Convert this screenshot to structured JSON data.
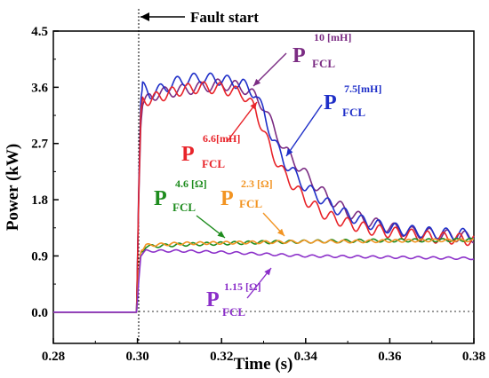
{
  "chart_data": {
    "type": "line",
    "title": "",
    "xlabel": "Time (s)",
    "ylabel": "Power  (kW)",
    "xlim": [
      0.28,
      0.38
    ],
    "ylim": [
      -0.5,
      4.5
    ],
    "xticks": [
      "0.28",
      "0.30",
      "0.32",
      "0.34",
      "0.36",
      "0.38"
    ],
    "xtick_values": [
      0.28,
      0.3,
      0.32,
      0.34,
      0.36,
      0.38
    ],
    "yticks": [
      "0.0",
      "0.9",
      "1.8",
      "2.7",
      "3.6",
      "4.5"
    ],
    "ytick_values": [
      0.0,
      0.9,
      1.8,
      2.7,
      3.6,
      4.5
    ],
    "grid": false,
    "fault_annotation": {
      "text": "Fault start",
      "x": 0.3
    },
    "series": [
      {
        "label_main": "P",
        "label_sup": "10 [mH]",
        "label_sub": "FCL",
        "color": "#7B2C83",
        "points": [
          [
            0.28,
            0
          ],
          [
            0.2998,
            0
          ],
          [
            0.3003,
            1.8
          ],
          [
            0.3008,
            3.0
          ],
          [
            0.3012,
            3.3
          ],
          [
            0.303,
            3.45
          ],
          [
            0.305,
            3.5
          ],
          [
            0.31,
            3.55
          ],
          [
            0.315,
            3.6
          ],
          [
            0.32,
            3.65
          ],
          [
            0.325,
            3.6
          ],
          [
            0.328,
            3.45
          ],
          [
            0.33,
            3.3
          ],
          [
            0.332,
            3.0
          ],
          [
            0.335,
            2.6
          ],
          [
            0.34,
            2.2
          ],
          [
            0.345,
            1.85
          ],
          [
            0.35,
            1.6
          ],
          [
            0.355,
            1.45
          ],
          [
            0.36,
            1.35
          ],
          [
            0.365,
            1.28
          ],
          [
            0.37,
            1.25
          ],
          [
            0.375,
            1.22
          ],
          [
            0.38,
            1.2
          ]
        ],
        "osc_amp": 0.09,
        "osc_period": 0.0042
      },
      {
        "label_main": "P",
        "label_sup": "7.5[mH]",
        "label_sub": "FCL",
        "color": "#1F2FC8",
        "points": [
          [
            0.28,
            0
          ],
          [
            0.2998,
            0
          ],
          [
            0.3003,
            2.0
          ],
          [
            0.3008,
            3.4
          ],
          [
            0.3012,
            3.6
          ],
          [
            0.303,
            3.5
          ],
          [
            0.305,
            3.55
          ],
          [
            0.31,
            3.7
          ],
          [
            0.315,
            3.75
          ],
          [
            0.32,
            3.72
          ],
          [
            0.325,
            3.65
          ],
          [
            0.328,
            3.5
          ],
          [
            0.33,
            3.2
          ],
          [
            0.332,
            2.8
          ],
          [
            0.335,
            2.4
          ],
          [
            0.34,
            2.0
          ],
          [
            0.345,
            1.75
          ],
          [
            0.35,
            1.55
          ],
          [
            0.355,
            1.42
          ],
          [
            0.36,
            1.35
          ],
          [
            0.365,
            1.3
          ],
          [
            0.37,
            1.27
          ],
          [
            0.375,
            1.25
          ],
          [
            0.38,
            1.25
          ]
        ],
        "osc_amp": 0.09,
        "osc_period": 0.004
      },
      {
        "label_main": "P",
        "label_sup": "6.6[mH]",
        "label_sub": "FCL",
        "color": "#E8242A",
        "points": [
          [
            0.28,
            0
          ],
          [
            0.2998,
            0
          ],
          [
            0.3003,
            1.9
          ],
          [
            0.3008,
            3.2
          ],
          [
            0.3012,
            3.4
          ],
          [
            0.303,
            3.4
          ],
          [
            0.305,
            3.45
          ],
          [
            0.31,
            3.55
          ],
          [
            0.315,
            3.6
          ],
          [
            0.32,
            3.58
          ],
          [
            0.325,
            3.5
          ],
          [
            0.328,
            3.25
          ],
          [
            0.33,
            2.9
          ],
          [
            0.332,
            2.55
          ],
          [
            0.335,
            2.2
          ],
          [
            0.34,
            1.8
          ],
          [
            0.345,
            1.55
          ],
          [
            0.35,
            1.42
          ],
          [
            0.355,
            1.33
          ],
          [
            0.36,
            1.28
          ],
          [
            0.365,
            1.24
          ],
          [
            0.37,
            1.2
          ],
          [
            0.375,
            1.18
          ],
          [
            0.38,
            1.15
          ]
        ],
        "osc_amp": 0.09,
        "osc_period": 0.0038
      },
      {
        "label_main": "P",
        "label_sup": "4.6 [Ω]",
        "label_sub": "FCL",
        "color": "#1E8C1E",
        "points": [
          [
            0.28,
            0
          ],
          [
            0.2998,
            0
          ],
          [
            0.3003,
            0.6
          ],
          [
            0.3008,
            0.95
          ],
          [
            0.302,
            1.05
          ],
          [
            0.31,
            1.08
          ],
          [
            0.32,
            1.1
          ],
          [
            0.33,
            1.12
          ],
          [
            0.34,
            1.13
          ],
          [
            0.35,
            1.14
          ],
          [
            0.36,
            1.15
          ],
          [
            0.37,
            1.15
          ],
          [
            0.38,
            1.16
          ]
        ],
        "osc_amp": 0.025,
        "osc_period": 0.0033
      },
      {
        "label_main": "P",
        "label_sup": "2.3 [Ω]",
        "label_sub": "FCL",
        "color": "#F29422",
        "points": [
          [
            0.28,
            0
          ],
          [
            0.2998,
            0
          ],
          [
            0.3003,
            0.6
          ],
          [
            0.3008,
            0.97
          ],
          [
            0.302,
            1.07
          ],
          [
            0.31,
            1.1
          ],
          [
            0.32,
            1.11
          ],
          [
            0.33,
            1.12
          ],
          [
            0.34,
            1.13
          ],
          [
            0.35,
            1.13
          ],
          [
            0.36,
            1.14
          ],
          [
            0.37,
            1.15
          ],
          [
            0.38,
            1.15
          ]
        ],
        "osc_amp": 0.022,
        "osc_period": 0.0031
      },
      {
        "label_main": "P",
        "label_sup": "1.15 [Ω]",
        "label_sub": "FCL",
        "color": "#8B2FC9",
        "points": [
          [
            0.28,
            0
          ],
          [
            0.2998,
            0
          ],
          [
            0.3003,
            0.5
          ],
          [
            0.3008,
            0.9
          ],
          [
            0.302,
            0.98
          ],
          [
            0.31,
            0.98
          ],
          [
            0.32,
            0.96
          ],
          [
            0.33,
            0.93
          ],
          [
            0.34,
            0.9
          ],
          [
            0.35,
            0.89
          ],
          [
            0.36,
            0.88
          ],
          [
            0.37,
            0.87
          ],
          [
            0.38,
            0.86
          ]
        ],
        "osc_amp": 0.018,
        "osc_period": 0.0036
      }
    ]
  }
}
